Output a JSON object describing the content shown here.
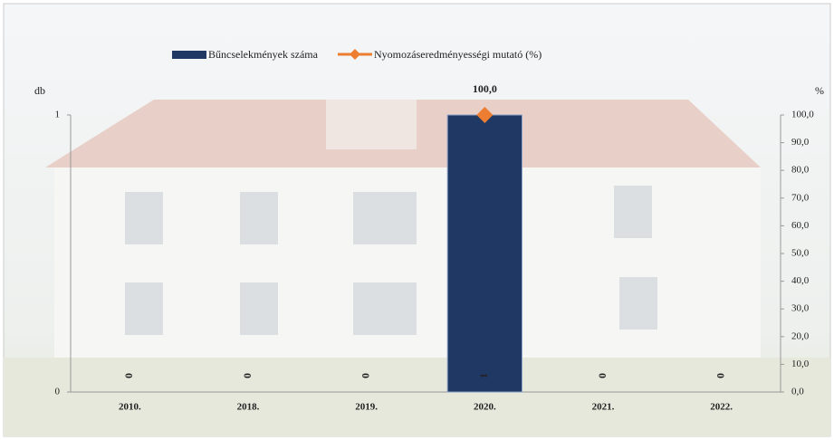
{
  "chart_data": {
    "type": "bar-line",
    "categories": [
      "2010.",
      "2018.",
      "2019.",
      "2020.",
      "2021.",
      "2022."
    ],
    "series": [
      {
        "name": "Bűncselekmények száma",
        "type": "bar",
        "color": "#1f3864",
        "values": [
          0,
          0,
          0,
          1,
          0,
          0
        ]
      },
      {
        "name": "Nyomozáseredményességi mutató (%)",
        "type": "line",
        "color": "#ed7d31",
        "axis": "y2",
        "values": [
          null,
          null,
          null,
          100,
          null,
          null
        ],
        "value_labels": [
          null,
          null,
          null,
          "100,0",
          null,
          null
        ]
      }
    ],
    "ylabel": "db",
    "y2label": "%",
    "ylim": [
      0,
      1
    ],
    "yticks": [
      0,
      1
    ],
    "y2lim": [
      0,
      100
    ],
    "y2ticks": [
      {
        "value": 0,
        "label": "0,0"
      },
      {
        "value": 10,
        "label": "10,0"
      },
      {
        "value": 20,
        "label": "20,0"
      },
      {
        "value": 30,
        "label": "30,0"
      },
      {
        "value": 40,
        "label": "40,0"
      },
      {
        "value": 50,
        "label": "50,0"
      },
      {
        "value": 60,
        "label": "60,0"
      },
      {
        "value": 70,
        "label": "70,0"
      },
      {
        "value": 80,
        "label": "80,0"
      },
      {
        "value": 90,
        "label": "90,0"
      },
      {
        "value": 100,
        "label": "100,0"
      }
    ],
    "legend": "top"
  }
}
